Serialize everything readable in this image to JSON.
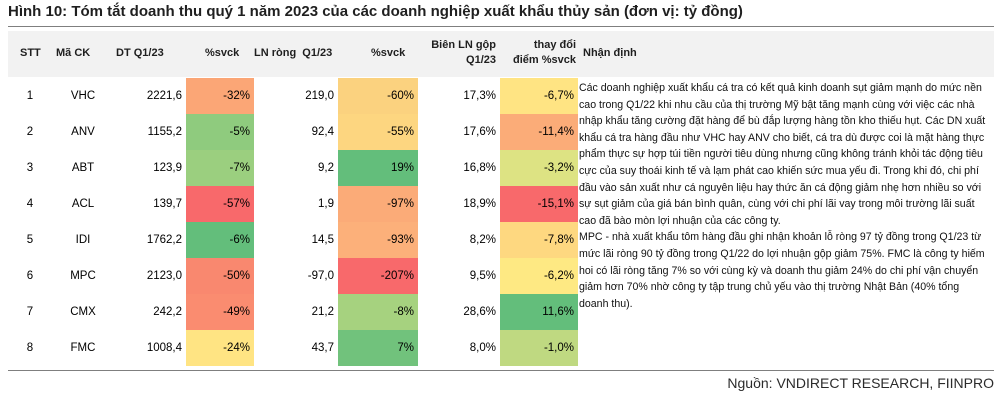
{
  "title": "Hình 10: Tóm tắt doanh thu quý 1 năm 2023 của các doanh nghiệp xuất khẩu thủy sản (đơn vị: tỷ đồng)",
  "headers": {
    "stt": "STT",
    "ma_ck": "Mã CK",
    "dt": "DT Q1/23",
    "dt_svck": "%svck",
    "ln_rong": "LN ròng  Q1/23",
    "ln_svck": "%svck",
    "bien_ln_line1": "Biên LN gộp",
    "bien_ln_line2": "Q1/23",
    "thaydoi_line1": "thay đổi",
    "thaydoi_line2": "điểm %svck",
    "nhan_dinh": "Nhận định"
  },
  "colors": {
    "header_bg": "#f2f2f2",
    "scale_red": "#f8696b",
    "scale_orange": "#fba676",
    "scale_yellow": "#ffeb84",
    "scale_lightgreen": "#c9dc81",
    "scale_green": "#63be7b"
  },
  "rows": [
    {
      "stt": "1",
      "ma": "VHC",
      "dt": "2221,6",
      "dt_svck": "-32%",
      "dt_color": "#fba676",
      "ln": "219,0",
      "ln_svck": "-60%",
      "ln_color": "#fbd27f",
      "bien": "17,3%",
      "tdd": "-6,7%",
      "tdd_color": "#ffe483"
    },
    {
      "stt": "2",
      "ma": "ANV",
      "dt": "1155,2",
      "dt_svck": "-5%",
      "dt_color": "#8fcb7e",
      "ln": "92,4",
      "ln_svck": "-55%",
      "ln_color": "#fdd680",
      "bien": "17,6%",
      "tdd": "-11,4%",
      "tdd_color": "#fbac78"
    },
    {
      "stt": "3",
      "ma": "ABT",
      "dt": "123,9",
      "dt_svck": "-7%",
      "dt_color": "#9bcf7f",
      "ln": "9,2",
      "ln_svck": "19%",
      "ln_color": "#63be7b",
      "bien": "16,8%",
      "tdd": "-3,2%",
      "tdd_color": "#dde383"
    },
    {
      "stt": "4",
      "ma": "ACL",
      "dt": "139,7",
      "dt_svck": "-57%",
      "dt_color": "#f8696b",
      "ln": "1,9",
      "ln_svck": "-97%",
      "ln_color": "#fbab78",
      "bien": "18,9%",
      "tdd": "-15,1%",
      "tdd_color": "#f8696b"
    },
    {
      "stt": "5",
      "ma": "IDI",
      "dt": "1762,2",
      "dt_svck": "-6%",
      "dt_color": "#63be7b",
      "ln": "14,5",
      "ln_svck": "-93%",
      "ln_color": "#fcb07a",
      "bien": "8,2%",
      "tdd": "-7,8%",
      "tdd_color": "#fed880"
    },
    {
      "stt": "6",
      "ma": "MPC",
      "dt": "2123,0",
      "dt_svck": "-50%",
      "dt_color": "#f9886f",
      "ln": "-97,0",
      "ln_svck": "-207%",
      "ln_color": "#f8696b",
      "bien": "9,5%",
      "tdd": "-6,2%",
      "tdd_color": "#fee983"
    },
    {
      "stt": "7",
      "ma": "CMX",
      "dt": "242,2",
      "dt_svck": "-49%",
      "dt_color": "#fa8c70",
      "ln": "21,2",
      "ln_svck": "-8%",
      "ln_color": "#a6d27f",
      "bien": "28,6%",
      "tdd": "11,6%",
      "tdd_color": "#63be7b"
    },
    {
      "stt": "8",
      "ma": "FMC",
      "dt": "1008,4",
      "dt_svck": "-24%",
      "dt_color": "#ffe483",
      "ln": "43,7",
      "ln_svck": "7%",
      "ln_color": "#71c27c",
      "bien": "8,0%",
      "tdd": "-1,0%",
      "tdd_color": "#bfd981"
    }
  ],
  "comment_para1": "Các doanh nghiệp xuất khẩu cá tra có kết quả kinh doanh sụt giảm mạnh do mức nền cao trong Q1/22 khi nhu cầu của thị trường Mỹ bật tăng mạnh cùng với việc các nhà nhập khẩu tăng cường đặt hàng để bù đắp lượng hàng tồn kho thiếu hụt. Các DN xuất khẩu cá tra hàng đầu như VHC hay ANV cho biết, cá tra dù được coi là mặt hàng thực phẩm thực sự hợp túi tiền người tiêu dùng nhưng cũng không tránh khỏi tác động tiêu cực của suy thoái kinh tế và lạm phát cao khiến sức mua yếu đi. Trong khi đó, chi phí đầu vào sản xuất như cá nguyên liệu hay thức ăn cá động giảm nhẹ hơn nhiều so với sự sụt giảm của giá bán bình quân, cùng với chi phí lãi vay trong môi trường lãi suất cao đã bào mòn lợi nhuận của các công ty.",
  "comment_para2": "MPC - nhà xuất khẩu tôm hàng đầu ghi nhận khoản lỗ ròng 97 tỷ đồng trong Q1/23 từ mức lãi ròng 90 tỷ đồng trong Q1/22 do lợi nhuận gộp giảm 75%. FMC là công ty hiếm hoi có lãi ròng tăng 7% so với cùng kỳ và doanh thu giảm 24% do chi phí vận chuyển giảm hơn 70% nhờ công ty tập trung chủ yếu vào thị trường Nhật Bản (40% tổng doanh thu).",
  "source": "Nguồn: VNDIRECT RESEARCH, FIINPRO"
}
